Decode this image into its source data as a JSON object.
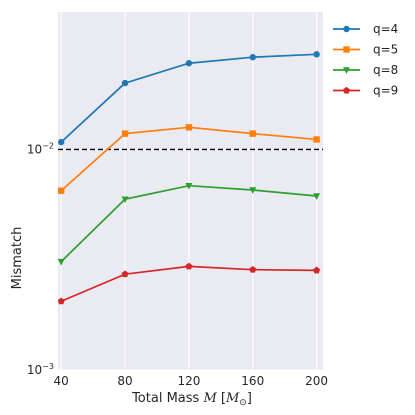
{
  "chart_data": {
    "type": "line",
    "x": [
      40,
      80,
      120,
      160,
      200
    ],
    "xlabel": "Total Mass $M$ [$M_{\\odot}$]",
    "xlabel_main": "Total Mass",
    "xlabel_var": "M",
    "xlabel_unit_open": "[",
    "xlabel_unit_base": "M",
    "xlabel_unit_sub": "⊙",
    "xlabel_unit_close": "]",
    "ylabel": "Mismatch",
    "xticks": [
      40,
      80,
      120,
      160,
      200
    ],
    "xtick_labels": [
      "40",
      "80",
      "120",
      "160",
      "200"
    ],
    "yscale": "log",
    "ylim": [
      0.001,
      0.042
    ],
    "xlim": [
      38,
      204
    ],
    "yticks": [
      {
        "value": 0.001,
        "base": "10",
        "exp": "−3"
      },
      {
        "value": 0.01,
        "base": "10",
        "exp": "−2"
      }
    ],
    "grid": true,
    "threshold_line": {
      "y": 0.01,
      "style": "dashed",
      "color": "#000000"
    },
    "legend_position": "outside-right",
    "series": [
      {
        "name": "q=4",
        "marker": "circle",
        "color": "#1f77b4",
        "values": [
          0.0108,
          0.02,
          0.0246,
          0.0262,
          0.027
        ]
      },
      {
        "name": "q=5",
        "marker": "square",
        "color": "#ff7f0e",
        "values": [
          0.0065,
          0.0118,
          0.0126,
          0.0118,
          0.0111
        ]
      },
      {
        "name": "q=8",
        "marker": "triangle-down",
        "color": "#2ca02c",
        "values": [
          0.0031,
          0.00595,
          0.00685,
          0.00655,
          0.00615
        ]
      },
      {
        "name": "q=9",
        "marker": "pentagon",
        "color": "#d62728",
        "values": [
          0.00205,
          0.00272,
          0.00295,
          0.00285,
          0.00283
        ]
      }
    ]
  }
}
